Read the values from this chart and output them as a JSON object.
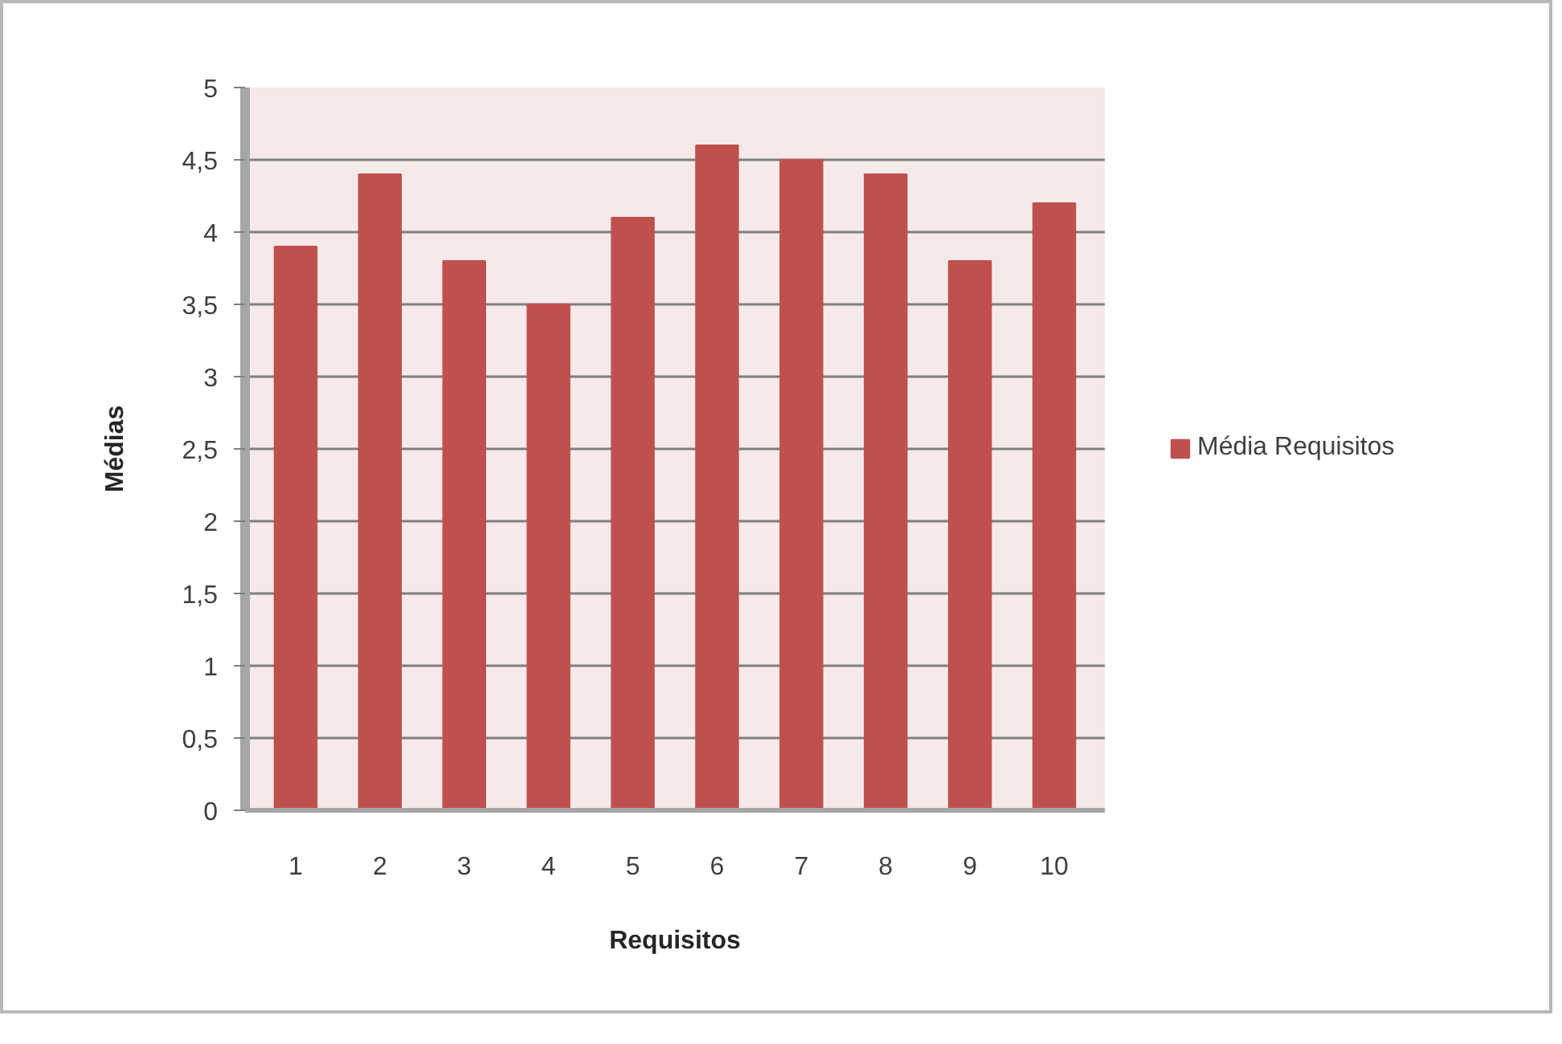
{
  "chart_data": {
    "type": "bar",
    "xlabel": "Requisitos",
    "ylabel": "Médias",
    "categories": [
      "1",
      "2",
      "3",
      "4",
      "5",
      "6",
      "7",
      "8",
      "9",
      "10"
    ],
    "series": [
      {
        "name": "Média Requisitos",
        "color": "#c0504d",
        "values": [
          3.9,
          4.4,
          3.8,
          3.5,
          4.1,
          4.6,
          4.5,
          4.4,
          3.8,
          4.2
        ]
      }
    ],
    "ylim": [
      0,
      5
    ],
    "yticks": [
      0,
      {
        "value": 0.5,
        "label": "0,5"
      },
      1,
      {
        "value": 1.5,
        "label": "1,5"
      },
      2,
      {
        "value": 2.5,
        "label": "2,5"
      },
      3,
      {
        "value": 3.5,
        "label": "3,5"
      },
      4,
      {
        "value": 4.5,
        "label": "4,5"
      },
      5
    ],
    "grid": "y",
    "legend": "right"
  }
}
